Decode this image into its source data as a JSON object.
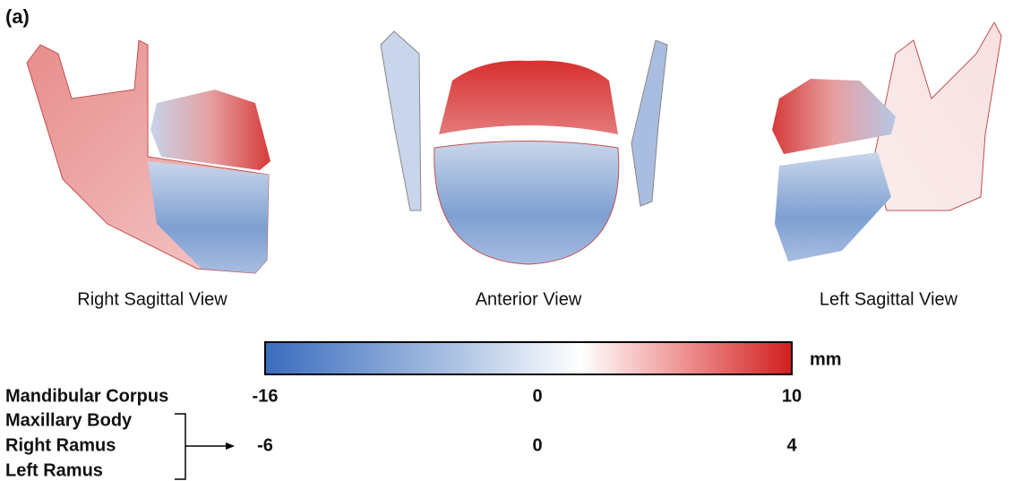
{
  "panel_label": "(a)",
  "views": [
    "Right Sagittal View",
    "Anterior View",
    "Left Sagittal View"
  ],
  "colorbar": {
    "unit": "mm"
  },
  "scales": [
    {
      "regions": [
        "Mandibular Corpus"
      ],
      "ticks": [
        -16,
        0,
        10
      ]
    },
    {
      "regions": [
        "Maxillary Body",
        "Right Ramus",
        "Left Ramus"
      ],
      "ticks": [
        -6,
        0,
        4
      ]
    }
  ]
}
